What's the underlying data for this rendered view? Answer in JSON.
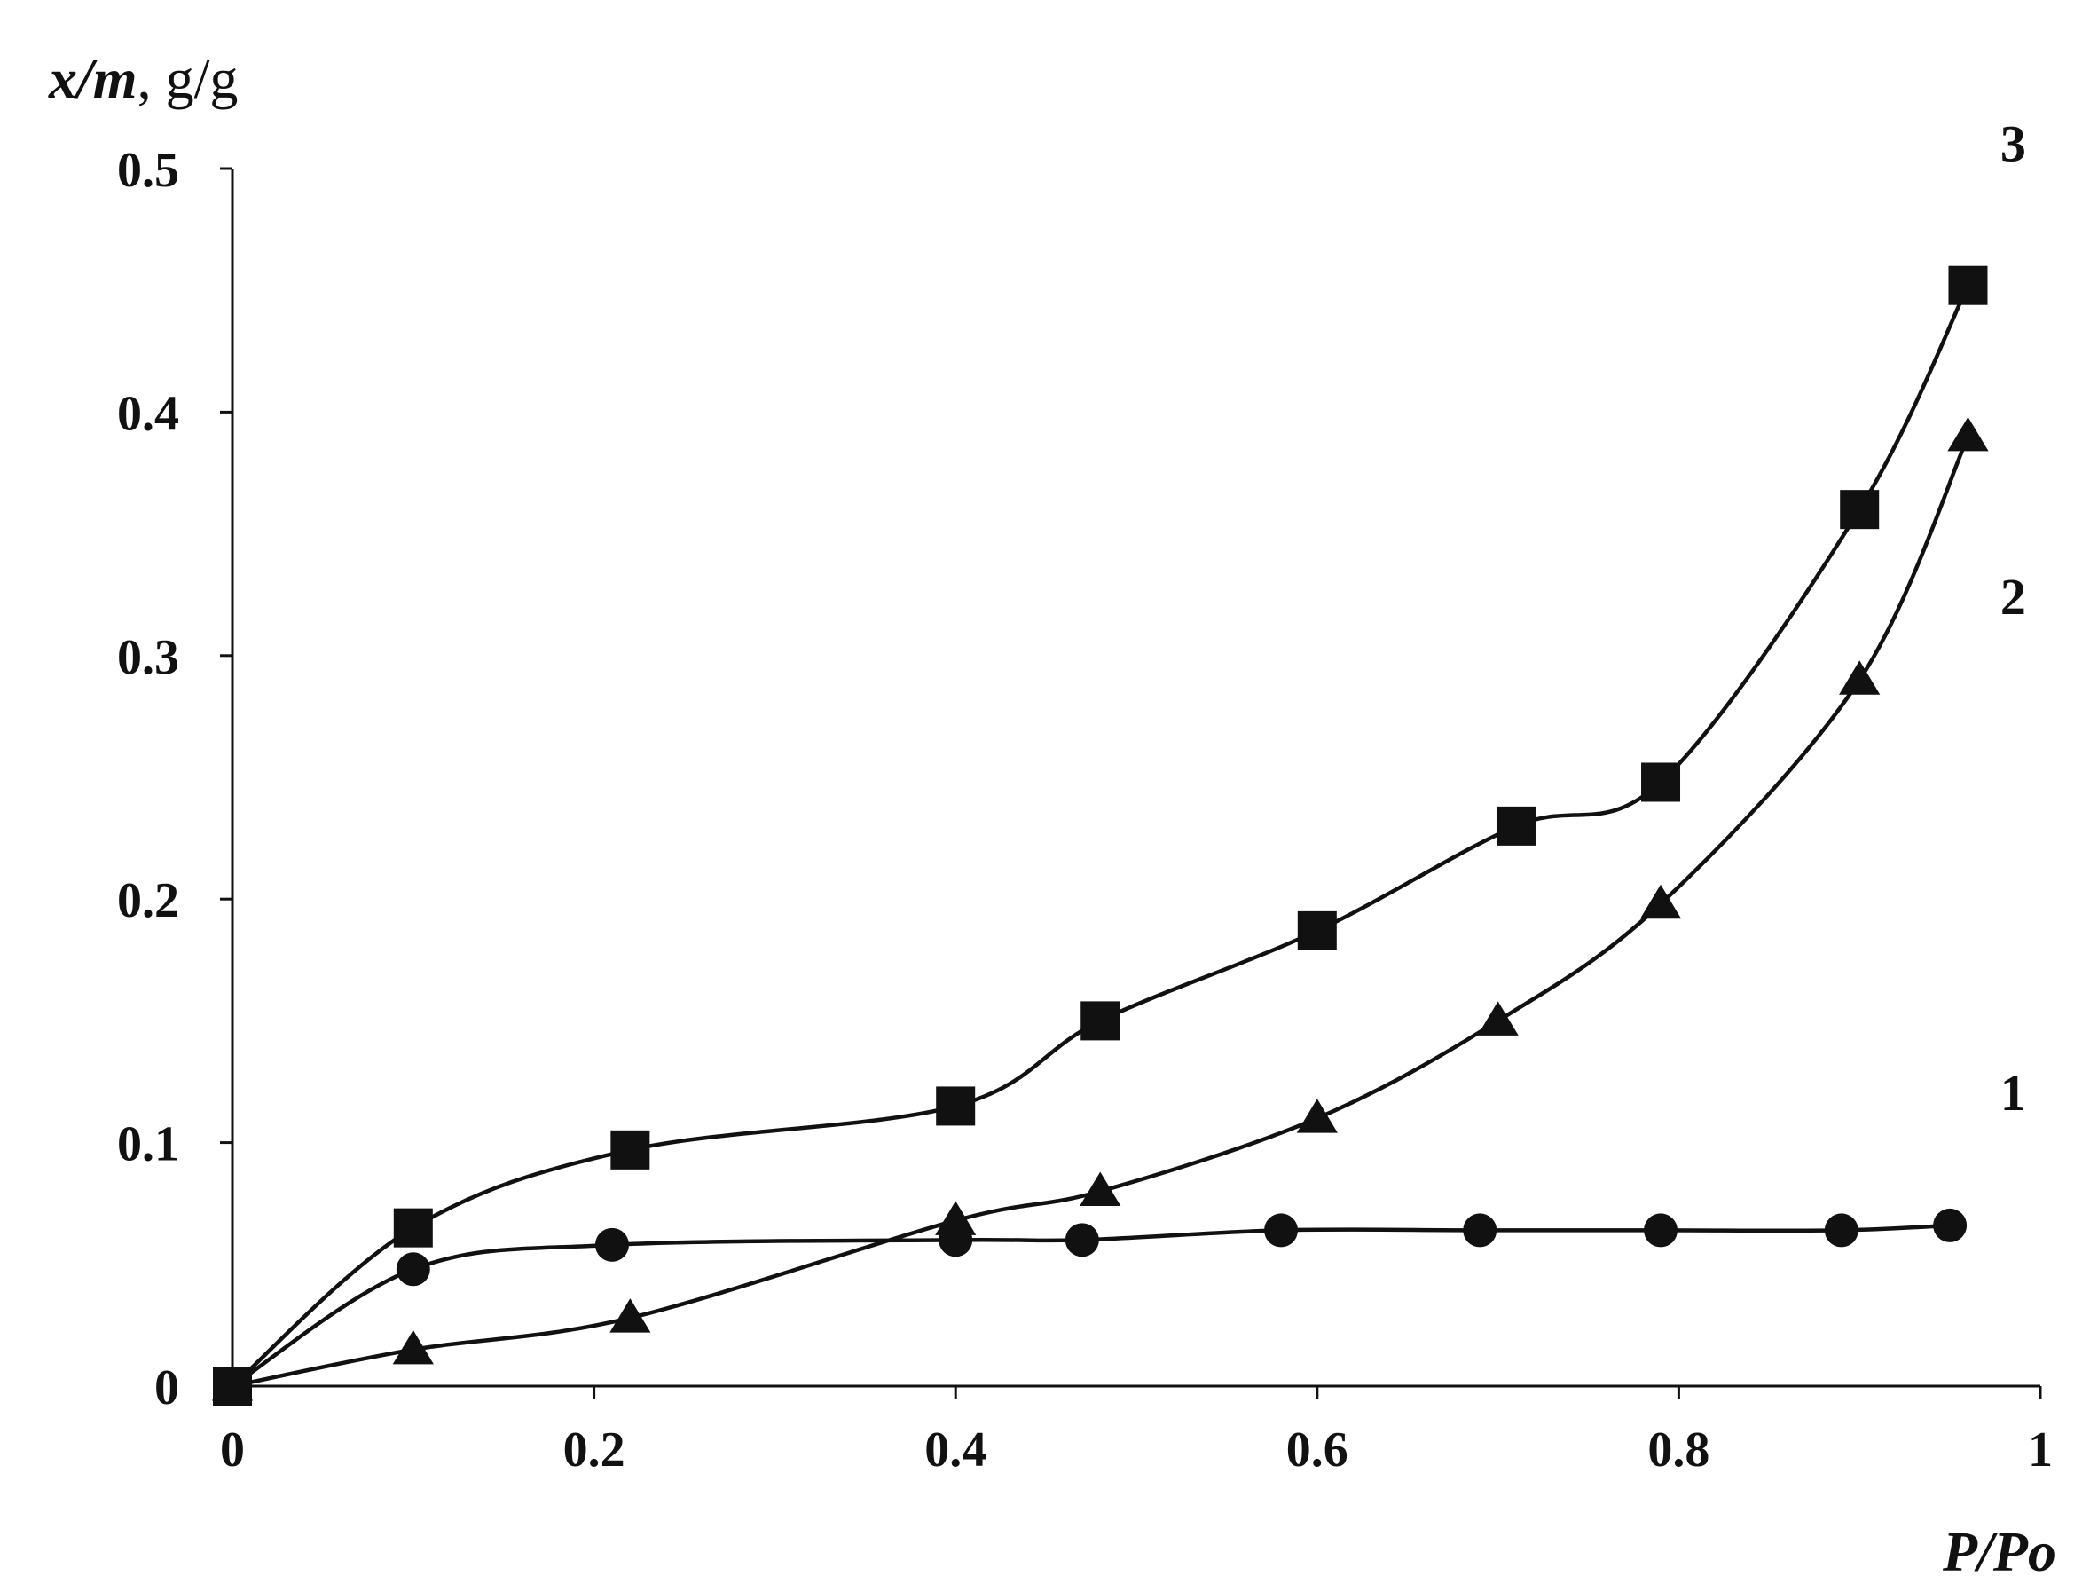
{
  "chart_data": {
    "type": "line",
    "title": "",
    "ylabel": "x/m",
    "ylabel_unit": ", g/g",
    "xlabel": "P/Po",
    "xlim": [
      0,
      1
    ],
    "ylim": [
      0,
      0.5
    ],
    "x_ticks": [
      "0",
      "0.2",
      "0.4",
      "0.6",
      "0.8",
      "1"
    ],
    "y_ticks": [
      "0",
      "0.1",
      "0.2",
      "0.3",
      "0.4",
      "0.5"
    ],
    "grid": false,
    "legend": "none (curve numbers at right end)",
    "series": [
      {
        "name": "1",
        "marker": "circle",
        "points": [
          [
            0.0,
            0.0
          ],
          [
            0.1,
            0.048
          ],
          [
            0.21,
            0.058
          ],
          [
            0.4,
            0.06
          ],
          [
            0.47,
            0.06
          ],
          [
            0.58,
            0.064
          ],
          [
            0.69,
            0.064
          ],
          [
            0.79,
            0.064
          ],
          [
            0.89,
            0.064
          ],
          [
            0.95,
            0.066
          ]
        ]
      },
      {
        "name": "2",
        "marker": "triangle",
        "points": [
          [
            0.0,
            0.0
          ],
          [
            0.1,
            0.015
          ],
          [
            0.22,
            0.028
          ],
          [
            0.4,
            0.068
          ],
          [
            0.48,
            0.08
          ],
          [
            0.6,
            0.11
          ],
          [
            0.7,
            0.15
          ],
          [
            0.79,
            0.198
          ],
          [
            0.9,
            0.29
          ],
          [
            0.96,
            0.39
          ]
        ]
      },
      {
        "name": "3",
        "marker": "square",
        "points": [
          [
            0.0,
            0.0
          ],
          [
            0.1,
            0.065
          ],
          [
            0.22,
            0.097
          ],
          [
            0.4,
            0.115
          ],
          [
            0.48,
            0.15
          ],
          [
            0.6,
            0.187
          ],
          [
            0.71,
            0.23
          ],
          [
            0.79,
            0.248
          ],
          [
            0.9,
            0.36
          ],
          [
            0.96,
            0.452
          ]
        ]
      }
    ]
  }
}
